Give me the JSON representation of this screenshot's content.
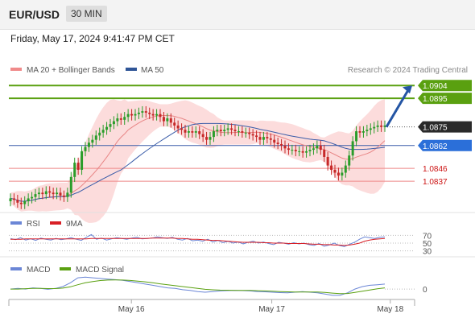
{
  "header": {
    "symbol": "EUR/USD",
    "timeframe": "30 MIN",
    "timestamp": "Friday, May 17, 2024 9:41:47 PM CET"
  },
  "colors": {
    "resistance": "#5aa010",
    "support": "#ee8888",
    "support_text": "#cc1111",
    "ma50": "#3a5ca8",
    "ma20": "#e88585",
    "bollinger_fill": "#fbd3d3",
    "current_price_bg": "#2a2a2a",
    "pivot_bg": "#2b6fd9",
    "arrow": "#2455a4",
    "candle_up": "#2a9d2a",
    "candle_down": "#c62828",
    "rsi_line": "#6b86d6",
    "rsi_ma": "#d81f26",
    "macd_line": "#6b86d6",
    "macd_signal": "#5aa010"
  },
  "chart_data": [
    {
      "type": "candlestick",
      "panel": "price",
      "legend": [
        {
          "name": "MA 20 + Bollinger Bands",
          "color": "#f08a8a"
        },
        {
          "name": "MA 50",
          "color": "#2f5597"
        }
      ],
      "watermark": "Research © 2024 Trading Central",
      "ylim": [
        1.0823,
        1.0912
      ],
      "x_ticks": [
        {
          "label": "May 16",
          "pos": 0.302
        },
        {
          "label": "May 17",
          "pos": 0.648
        },
        {
          "label": "May 18",
          "pos": 0.94
        }
      ],
      "x_range_days": 2.95,
      "levels": [
        {
          "value": 1.0904,
          "label": "1.0904",
          "role": "resistance"
        },
        {
          "value": 1.0895,
          "label": "1.0895",
          "role": "resistance"
        },
        {
          "value": 1.0875,
          "label": "1.0875",
          "role": "current_price"
        },
        {
          "value": 1.0862,
          "label": "1.0862",
          "role": "pivot"
        },
        {
          "value": 1.0846,
          "label": "1.0846",
          "role": "support"
        },
        {
          "value": 1.0837,
          "label": "1.0837",
          "role": "support"
        }
      ],
      "close_approx": [
        1.0825,
        1.0824,
        1.0822,
        1.0821,
        1.0823,
        1.0825,
        1.0826,
        1.0828,
        1.0829,
        1.0828,
        1.083,
        1.0829,
        1.0828,
        1.0829,
        1.0827,
        1.0826,
        1.0829,
        1.084,
        1.085,
        1.0845,
        1.0858,
        1.0861,
        1.0864,
        1.0866,
        1.0869,
        1.0871,
        1.0873,
        1.0875,
        1.0877,
        1.0879,
        1.0881,
        1.088,
        1.0882,
        1.0884,
        1.0883,
        1.0884,
        1.0885,
        1.0886,
        1.0885,
        1.0884,
        1.0883,
        1.0884,
        1.0882,
        1.0879,
        1.0881,
        1.0878,
        1.0876,
        1.0874,
        1.0873,
        1.0871,
        1.0872,
        1.0871,
        1.0872,
        1.087,
        1.0868,
        1.0866,
        1.0868,
        1.0872,
        1.0873,
        1.0872,
        1.0873,
        1.0874,
        1.0873,
        1.0872,
        1.0872,
        1.0871,
        1.0871,
        1.087,
        1.0869,
        1.0868,
        1.0866,
        1.0868,
        1.0867,
        1.0866,
        1.0864,
        1.0863,
        1.0862,
        1.086,
        1.0859,
        1.0859,
        1.0858,
        1.0858,
        1.0857,
        1.0858,
        1.0859,
        1.086,
        1.0862,
        1.0859,
        1.0854,
        1.0848,
        1.0845,
        1.0843,
        1.0841,
        1.0843,
        1.0848,
        1.0855,
        1.0865,
        1.0872,
        1.0871,
        1.0872,
        1.0873,
        1.0874,
        1.0875,
        1.0876,
        1.0875,
        1.0876
      ],
      "projection": {
        "from": 1.0875,
        "to": 1.0904
      }
    },
    {
      "type": "line",
      "panel": "rsi",
      "legend": [
        {
          "name": "RSI",
          "color": "#6b86d6"
        },
        {
          "name": "9MA",
          "color": "#d81f26"
        }
      ],
      "levels": [
        70,
        50,
        30
      ],
      "ylim": [
        25,
        75
      ],
      "series": [
        {
          "name": "RSI",
          "values": [
            62,
            59,
            64,
            58,
            61,
            57,
            63,
            60,
            58,
            62,
            59,
            61,
            64,
            60,
            57,
            65,
            72,
            60,
            63,
            58,
            61,
            64,
            62,
            60,
            63,
            65,
            61,
            62,
            63,
            66,
            64,
            62,
            65,
            60,
            58,
            62,
            56,
            58,
            55,
            60,
            53,
            57,
            51,
            55,
            50,
            53,
            48,
            52,
            55,
            50,
            53,
            49,
            46,
            52,
            50,
            47,
            51,
            48,
            50,
            46,
            44,
            49,
            42,
            45,
            50,
            44,
            41,
            47,
            52,
            60,
            66,
            64,
            62,
            65,
            66
          ]
        },
        {
          "name": "9MA",
          "values": [
            60,
            60,
            60,
            61,
            61,
            61,
            61,
            61,
            61,
            61,
            61,
            61,
            61,
            61,
            61,
            61,
            62,
            62,
            62,
            62,
            62,
            62,
            62,
            62,
            62,
            62,
            62,
            62,
            63,
            63,
            63,
            63,
            63,
            62,
            62,
            61,
            60,
            60,
            59,
            58,
            57,
            57,
            56,
            55,
            54,
            53,
            52,
            52,
            52,
            52,
            51,
            51,
            50,
            50,
            50,
            49,
            49,
            49,
            49,
            48,
            47,
            47,
            46,
            46,
            45,
            45,
            44,
            45,
            47,
            50,
            55,
            58,
            60,
            61,
            62
          ]
        }
      ]
    },
    {
      "type": "line",
      "panel": "macd",
      "legend": [
        {
          "name": "MACD",
          "color": "#6b86d6"
        },
        {
          "name": "MACD Signal",
          "color": "#5aa010"
        }
      ],
      "levels": [
        0
      ],
      "level_labels": [
        "0"
      ],
      "ylim": [
        -0.0007,
        0.0011
      ],
      "series": [
        {
          "name": "MACD",
          "values": [
            0,
            5e-05,
            0.0,
            0.0001,
            5e-05,
            -2e-05,
            5e-05,
            0.0002,
            0.0005,
            0.0009,
            0.00095,
            0.0009,
            0.00085,
            0.0008,
            0.00075,
            0.0007,
            0.0006,
            0.0005,
            0.0004,
            0.0003,
            0.0002,
            0.0001,
            5e-05,
            -5e-05,
            -0.0001,
            -0.0002,
            -0.00025,
            -0.0002,
            -0.00015,
            -0.00012,
            -0.0001,
            -0.00012,
            -0.00015,
            -0.0002,
            -0.00022,
            -0.00025,
            -0.00028,
            -0.0003,
            -0.00025,
            -0.0002,
            -0.00025,
            -0.0003,
            -0.0004,
            -0.0005,
            -0.0005,
            -0.0003,
            0.0,
            0.0002,
            0.0003,
            0.00035,
            0.0004
          ]
        },
        {
          "name": "MACD Signal",
          "values": [
            0,
            0,
            3e-05,
            5e-05,
            5e-05,
            4e-05,
            4e-05,
            8e-05,
            0.00018,
            0.00035,
            0.0005,
            0.0006,
            0.00068,
            0.00072,
            0.00073,
            0.00072,
            0.00069,
            0.00064,
            0.00058,
            0.0005,
            0.00042,
            0.00034,
            0.00027,
            0.0002,
            0.00013,
            5e-05,
            -2e-05,
            -6e-05,
            -8e-05,
            -9e-05,
            -0.0001,
            -0.0001,
            -0.00011,
            -0.00013,
            -0.00015,
            -0.00017,
            -0.0002,
            -0.00022,
            -0.00023,
            -0.00023,
            -0.00023,
            -0.00024,
            -0.00027,
            -0.00032,
            -0.00036,
            -0.00035,
            -0.00027,
            -0.00017,
            -7e-05,
            2e-05,
            0.0001
          ]
        }
      ]
    }
  ]
}
